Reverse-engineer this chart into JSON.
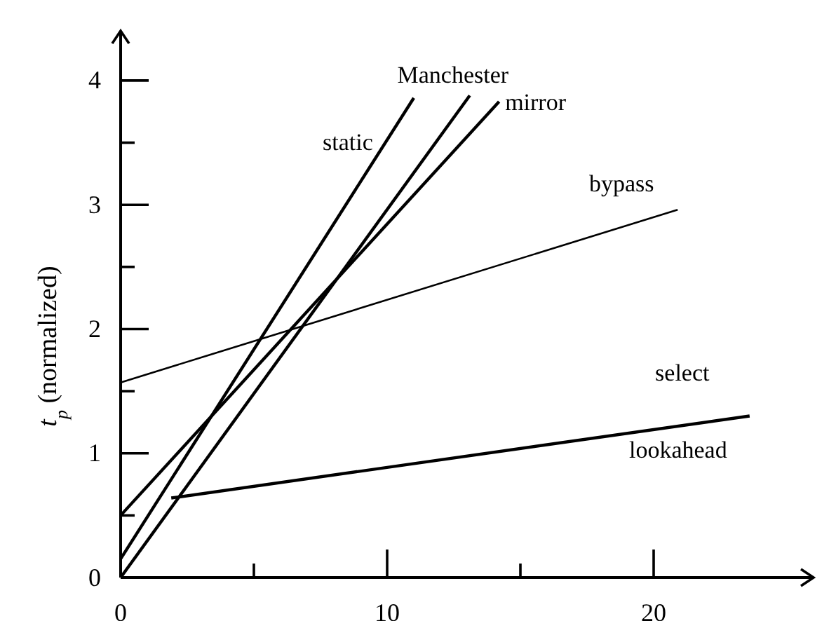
{
  "chart_data": {
    "type": "line",
    "ylabel": "t$_{p}$ (normalized)",
    "xlim": [
      0,
      26
    ],
    "ylim": [
      0,
      4.4
    ],
    "xticks": [
      0,
      {
        "value": 5,
        "label": null
      },
      10,
      {
        "value": 15,
        "label": null
      },
      20
    ],
    "yticks": [
      0,
      {
        "value": 0.5,
        "label": null
      },
      1,
      {
        "value": 1.5,
        "label": null
      },
      2,
      {
        "value": 2.5,
        "label": null
      },
      3,
      {
        "value": 3.5,
        "label": null
      },
      4
    ],
    "grid": false,
    "marker": "none",
    "line_style": "solid",
    "series": [
      {
        "name": "static",
        "color": "#000000",
        "x": [
          0,
          11.0
        ],
        "values": [
          0.15,
          3.86
        ]
      },
      {
        "name": "Manchester",
        "color": "#000000",
        "x": [
          0,
          13.1
        ],
        "values": [
          0,
          3.88
        ]
      },
      {
        "name": "mirror",
        "color": "#000000",
        "x": [
          0,
          14.2
        ],
        "values": [
          0.5,
          3.83
        ]
      },
      {
        "name": "bypass",
        "color": "#000000",
        "x": [
          0,
          20.9
        ],
        "values": [
          1.57,
          2.96
        ]
      },
      {
        "name": "select",
        "color": "#000000",
        "x": [
          1.9,
          23.6
        ],
        "values": [
          0.64,
          1.3
        ]
      }
    ],
    "annotations": [
      "lookahead"
    ]
  }
}
